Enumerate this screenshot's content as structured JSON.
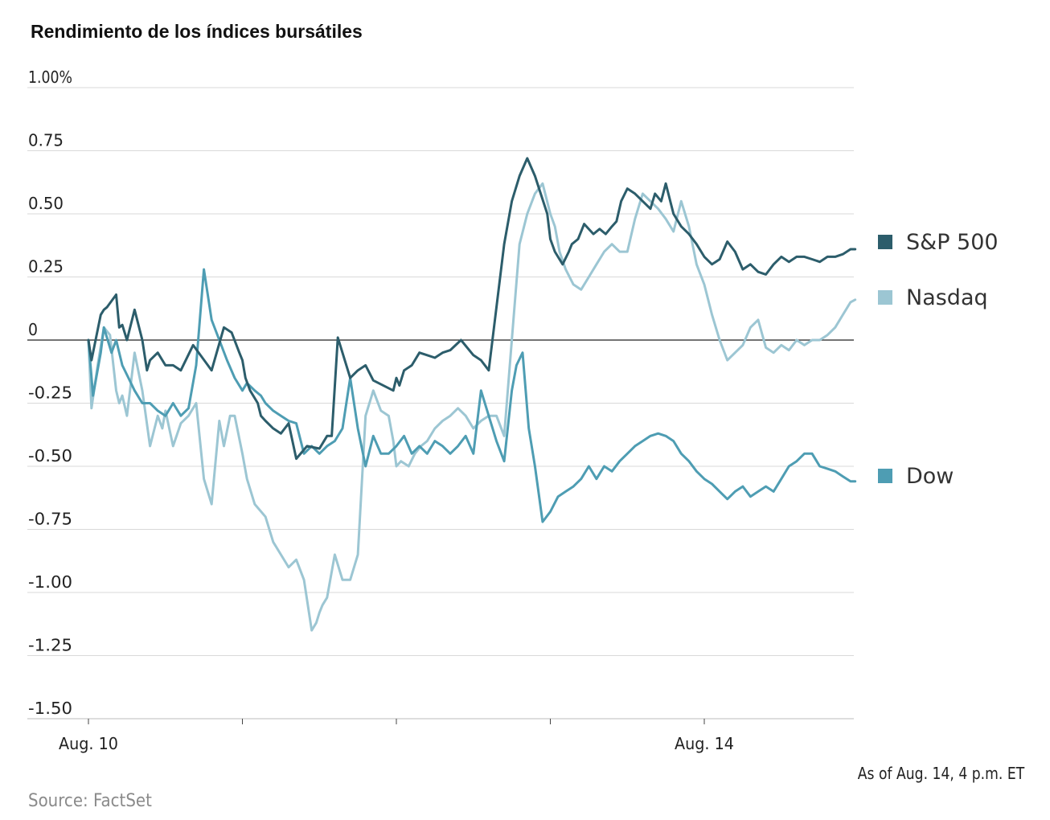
{
  "title": "Rendimiento de los índices bursátiles",
  "footnote": "As of Aug. 14, 4 p.m. ET",
  "source": "Source: FactSet",
  "chart_data": {
    "type": "line",
    "title": "Rendimiento de los índices bursátiles",
    "xlabel": "",
    "ylabel": "",
    "ylim": [
      -1.5,
      1.0
    ],
    "y_ticks": [
      1.0,
      0.75,
      0.5,
      0.25,
      0,
      -0.25,
      -0.5,
      -0.75,
      -1.0,
      -1.25,
      -1.5
    ],
    "y_tick_labels": [
      "1.00%",
      "0.75",
      "0.50",
      "0.25",
      "0",
      "-0.25",
      "-0.50",
      "-0.75",
      "-1.00",
      "-1.25",
      "-1.50"
    ],
    "x_labels": [
      {
        "day": 0,
        "label": "Aug. 10"
      },
      {
        "day": 4,
        "label": "Aug. 14"
      }
    ],
    "x_day_ticks": [
      0,
      1,
      2,
      3,
      4
    ],
    "grid": true,
    "legend": "right",
    "series": [
      {
        "name": "S&P 500",
        "color": "#2c5d6b",
        "x": [
          0,
          0.02,
          0.08,
          0.1,
          0.12,
          0.18,
          0.2,
          0.22,
          0.25,
          0.3,
          0.35,
          0.38,
          0.4,
          0.45,
          0.5,
          0.55,
          0.6,
          0.68,
          0.8,
          0.88,
          0.93,
          0.98,
          1.0,
          1.02,
          1.05,
          1.1,
          1.12,
          1.15,
          1.2,
          1.25,
          1.3,
          1.35,
          1.42,
          1.5,
          1.55,
          1.58,
          1.62,
          1.7,
          1.75,
          1.8,
          1.85,
          1.98,
          2.0,
          2.02,
          2.05,
          2.1,
          2.15,
          2.2,
          2.25,
          2.3,
          2.35,
          2.42,
          2.5,
          2.55,
          2.6,
          2.7,
          2.75,
          2.8,
          2.85,
          2.9,
          2.98,
          3.0,
          3.03,
          3.08,
          3.12,
          3.14,
          3.18,
          3.22,
          3.28,
          3.32,
          3.36,
          3.4,
          3.43,
          3.46,
          3.5,
          3.55,
          3.6,
          3.65,
          3.68,
          3.72,
          3.75,
          3.8,
          3.85,
          3.9,
          3.95,
          4.0,
          4.05,
          4.1,
          4.15,
          4.2,
          4.25,
          4.3,
          4.35,
          4.4,
          4.45,
          4.5,
          4.55,
          4.6,
          4.65,
          4.7,
          4.75,
          4.8,
          4.85,
          4.9,
          4.95,
          4.98
        ],
        "values": [
          0.0,
          -0.08,
          0.1,
          0.12,
          0.13,
          0.18,
          0.05,
          0.06,
          0.0,
          0.12,
          0.0,
          -0.12,
          -0.08,
          -0.05,
          -0.1,
          -0.1,
          -0.12,
          -0.02,
          -0.12,
          0.05,
          0.03,
          -0.05,
          -0.08,
          -0.15,
          -0.2,
          -0.25,
          -0.3,
          -0.32,
          -0.35,
          -0.37,
          -0.33,
          -0.47,
          -0.42,
          -0.43,
          -0.38,
          -0.38,
          0.01,
          -0.15,
          -0.12,
          -0.1,
          -0.16,
          -0.2,
          -0.15,
          -0.18,
          -0.12,
          -0.1,
          -0.05,
          -0.06,
          -0.07,
          -0.05,
          -0.04,
          0.0,
          -0.06,
          -0.08,
          -0.12,
          0.38,
          0.55,
          0.65,
          0.72,
          0.65,
          0.5,
          0.4,
          0.35,
          0.3,
          0.35,
          0.38,
          0.4,
          0.46,
          0.42,
          0.44,
          0.42,
          0.45,
          0.47,
          0.55,
          0.6,
          0.58,
          0.55,
          0.52,
          0.58,
          0.55,
          0.62,
          0.5,
          0.45,
          0.42,
          0.38,
          0.33,
          0.3,
          0.32,
          0.39,
          0.35,
          0.28,
          0.3,
          0.27,
          0.26,
          0.3,
          0.33,
          0.31,
          0.33,
          0.33,
          0.32,
          0.31,
          0.33,
          0.33,
          0.34,
          0.36,
          0.36
        ]
      },
      {
        "name": "Nasdaq",
        "color": "#9cc6d3",
        "x": [
          0,
          0.02,
          0.06,
          0.1,
          0.14,
          0.18,
          0.2,
          0.22,
          0.25,
          0.3,
          0.35,
          0.4,
          0.45,
          0.48,
          0.5,
          0.55,
          0.6,
          0.65,
          0.7,
          0.75,
          0.8,
          0.85,
          0.88,
          0.92,
          0.95,
          1.0,
          1.03,
          1.08,
          1.15,
          1.2,
          1.25,
          1.3,
          1.35,
          1.4,
          1.45,
          1.48,
          1.5,
          1.52,
          1.55,
          1.6,
          1.65,
          1.7,
          1.75,
          1.8,
          1.85,
          1.9,
          1.95,
          1.98,
          2.0,
          2.03,
          2.08,
          2.12,
          2.16,
          2.2,
          2.25,
          2.3,
          2.35,
          2.4,
          2.45,
          2.5,
          2.55,
          2.6,
          2.65,
          2.7,
          2.75,
          2.8,
          2.85,
          2.9,
          2.95,
          3.0,
          3.03,
          3.06,
          3.1,
          3.15,
          3.2,
          3.25,
          3.3,
          3.35,
          3.4,
          3.45,
          3.5,
          3.55,
          3.6,
          3.65,
          3.7,
          3.75,
          3.8,
          3.85,
          3.9,
          3.95,
          4.0,
          4.05,
          4.1,
          4.15,
          4.2,
          4.25,
          4.3,
          4.35,
          4.4,
          4.45,
          4.5,
          4.55,
          4.6,
          4.65,
          4.7,
          4.75,
          4.8,
          4.85,
          4.9,
          4.95,
          4.98
        ],
        "values": [
          0.0,
          -0.27,
          -0.1,
          0.05,
          0.02,
          -0.2,
          -0.25,
          -0.22,
          -0.3,
          -0.05,
          -0.2,
          -0.42,
          -0.3,
          -0.35,
          -0.28,
          -0.42,
          -0.33,
          -0.3,
          -0.25,
          -0.55,
          -0.65,
          -0.32,
          -0.42,
          -0.3,
          -0.3,
          -0.45,
          -0.55,
          -0.65,
          -0.7,
          -0.8,
          -0.85,
          -0.9,
          -0.87,
          -0.95,
          -1.15,
          -1.12,
          -1.08,
          -1.05,
          -1.02,
          -0.85,
          -0.95,
          -0.95,
          -0.85,
          -0.3,
          -0.2,
          -0.28,
          -0.3,
          -0.4,
          -0.5,
          -0.48,
          -0.5,
          -0.45,
          -0.42,
          -0.4,
          -0.35,
          -0.32,
          -0.3,
          -0.27,
          -0.3,
          -0.35,
          -0.32,
          -0.3,
          -0.3,
          -0.38,
          0.0,
          0.38,
          0.5,
          0.58,
          0.62,
          0.5,
          0.45,
          0.35,
          0.28,
          0.22,
          0.2,
          0.25,
          0.3,
          0.35,
          0.38,
          0.35,
          0.35,
          0.48,
          0.58,
          0.55,
          0.52,
          0.48,
          0.43,
          0.55,
          0.45,
          0.3,
          0.22,
          0.1,
          0.0,
          -0.08,
          -0.05,
          -0.02,
          0.05,
          0.08,
          -0.03,
          -0.05,
          -0.02,
          -0.04,
          0.0,
          -0.02,
          0.0,
          0.0,
          0.02,
          0.05,
          0.1,
          0.15,
          0.16
        ]
      },
      {
        "name": "Dow",
        "color": "#4e9db3",
        "x": [
          0,
          0.03,
          0.08,
          0.1,
          0.15,
          0.18,
          0.22,
          0.26,
          0.3,
          0.35,
          0.4,
          0.45,
          0.5,
          0.55,
          0.6,
          0.65,
          0.7,
          0.75,
          0.8,
          0.9,
          0.95,
          1.0,
          1.03,
          1.08,
          1.12,
          1.15,
          1.2,
          1.25,
          1.3,
          1.35,
          1.4,
          1.45,
          1.5,
          1.55,
          1.6,
          1.65,
          1.7,
          1.75,
          1.8,
          1.85,
          1.9,
          1.95,
          2.0,
          2.05,
          2.1,
          2.15,
          2.2,
          2.25,
          2.3,
          2.35,
          2.4,
          2.45,
          2.5,
          2.55,
          2.6,
          2.65,
          2.7,
          2.75,
          2.78,
          2.82,
          2.86,
          2.9,
          2.95,
          3.0,
          3.05,
          3.1,
          3.15,
          3.2,
          3.25,
          3.3,
          3.35,
          3.4,
          3.45,
          3.5,
          3.55,
          3.6,
          3.65,
          3.7,
          3.75,
          3.8,
          3.85,
          3.9,
          3.95,
          4.0,
          4.05,
          4.1,
          4.15,
          4.2,
          4.25,
          4.3,
          4.35,
          4.4,
          4.45,
          4.5,
          4.55,
          4.6,
          4.65,
          4.7,
          4.75,
          4.8,
          4.85,
          4.9,
          4.95,
          4.98
        ],
        "values": [
          0.0,
          -0.22,
          -0.05,
          0.05,
          -0.05,
          0.0,
          -0.1,
          -0.15,
          -0.2,
          -0.25,
          -0.25,
          -0.28,
          -0.3,
          -0.25,
          -0.3,
          -0.27,
          -0.1,
          0.28,
          0.08,
          -0.08,
          -0.15,
          -0.2,
          -0.17,
          -0.2,
          -0.22,
          -0.25,
          -0.28,
          -0.3,
          -0.32,
          -0.33,
          -0.45,
          -0.42,
          -0.45,
          -0.42,
          -0.4,
          -0.35,
          -0.15,
          -0.35,
          -0.5,
          -0.38,
          -0.45,
          -0.45,
          -0.42,
          -0.38,
          -0.45,
          -0.42,
          -0.45,
          -0.4,
          -0.42,
          -0.45,
          -0.42,
          -0.38,
          -0.45,
          -0.2,
          -0.3,
          -0.4,
          -0.48,
          -0.2,
          -0.1,
          -0.05,
          -0.35,
          -0.5,
          -0.72,
          -0.68,
          -0.62,
          -0.6,
          -0.58,
          -0.55,
          -0.5,
          -0.55,
          -0.5,
          -0.52,
          -0.48,
          -0.45,
          -0.42,
          -0.4,
          -0.38,
          -0.37,
          -0.38,
          -0.4,
          -0.45,
          -0.48,
          -0.52,
          -0.55,
          -0.57,
          -0.6,
          -0.63,
          -0.6,
          -0.58,
          -0.62,
          -0.6,
          -0.58,
          -0.6,
          -0.55,
          -0.5,
          -0.48,
          -0.45,
          -0.45,
          -0.5,
          -0.51,
          -0.52,
          -0.54,
          -0.56,
          -0.56
        ]
      }
    ]
  }
}
